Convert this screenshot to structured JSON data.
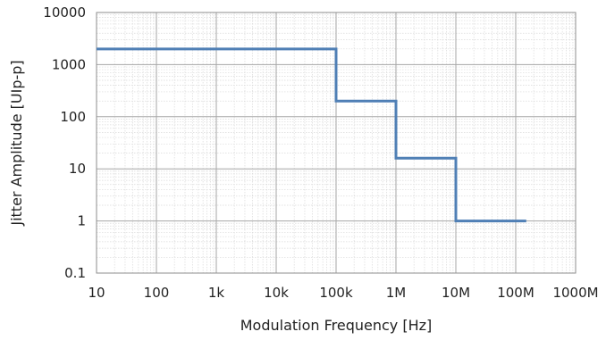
{
  "chart_data": {
    "type": "line",
    "title": "",
    "xlabel": "Modulation Frequency [Hz]",
    "ylabel": "Jitter Amplitude [UIp-p]",
    "x_scale": "log",
    "y_scale": "log",
    "xlim": [
      10,
      1000000000
    ],
    "ylim": [
      0.1,
      10000
    ],
    "x_tick_values": [
      10,
      100,
      1000,
      10000,
      100000,
      1000000,
      10000000,
      100000000,
      1000000000
    ],
    "x_tick_labels": [
      "10",
      "100",
      "1k",
      "10k",
      "100k",
      "1M",
      "10M",
      "100M",
      "1000M"
    ],
    "y_tick_values": [
      0.1,
      1,
      10,
      100,
      1000,
      10000
    ],
    "y_tick_labels": [
      "0.1",
      "1",
      "10",
      "100",
      "1000",
      "10000"
    ],
    "grid": true,
    "minor_grid": true,
    "legend": "none",
    "series": [
      {
        "color": "#4f7fb5",
        "points": [
          [
            10,
            2000
          ],
          [
            100000,
            2000
          ],
          [
            100000,
            200
          ],
          [
            1000000,
            200
          ],
          [
            1000000,
            16
          ],
          [
            10000000,
            16
          ],
          [
            10000000,
            1
          ],
          [
            150000000,
            1
          ]
        ]
      }
    ],
    "colors": {
      "major_grid": "#a6a6a6",
      "minor_grid": "#d9d9d9",
      "frame": "#8c8c8c"
    }
  }
}
